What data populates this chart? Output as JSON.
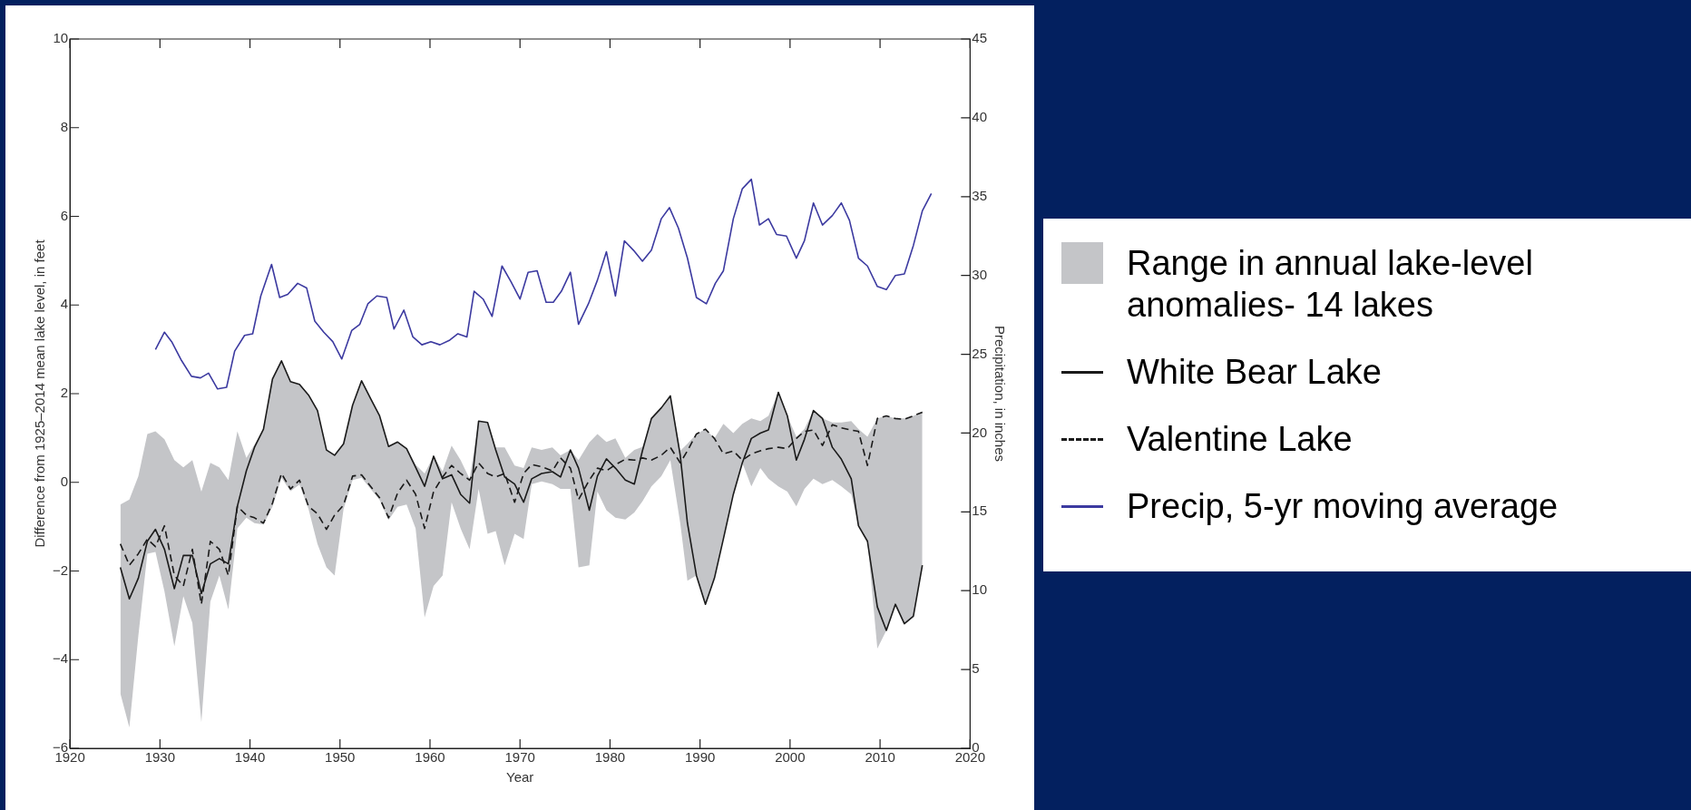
{
  "chart_data": {
    "type": "line",
    "xlabel": "Year",
    "ylabel": "Difference from 1925–2014 mean lake level, in feet",
    "y2label": "Precipitation, in inches",
    "x": [
      1925.6,
      1926.6,
      1927.6,
      1928.6,
      1929.5,
      1930.5,
      1931.6,
      1932.6,
      1933.6,
      1934.6,
      1935.6,
      1936.6,
      1937.6,
      1938.6,
      1939.6,
      1940.5,
      1941.5,
      1942.5,
      1943.5,
      1944.5,
      1945.5,
      1946.5,
      1947.5,
      1948.5,
      1949.4,
      1950.4,
      1951.4,
      1952.4,
      1953.4,
      1954.4,
      1955.4,
      1956.4,
      1957.4,
      1958.4,
      1959.4,
      1960.4,
      1961.4,
      1962.4,
      1963.4,
      1964.4,
      1965.4,
      1966.4,
      1967.3,
      1968.3,
      1969.4,
      1970.4,
      1971.3,
      1972.4,
      1973.6,
      1974.5,
      1975.6,
      1976.5,
      1977.7,
      1978.6,
      1979.6,
      1980.6,
      1981.7,
      1982.7,
      1983.6,
      1984.6,
      1985.7,
      1986.7,
      1987.8,
      1988.6,
      1989.6,
      1990.6,
      1991.6,
      1992.6,
      1993.7,
      1994.7,
      1995.7,
      1996.7,
      1997.6,
      1998.7,
      1999.7,
      2000.7,
      2001.6,
      2002.6,
      2003.6,
      2004.7,
      2005.7,
      2006.8,
      2007.6,
      2008.6,
      2009.7,
      2010.7,
      2011.7,
      2012.7,
      2013.7,
      2014.7
    ],
    "series": [
      {
        "name": "Range in annual lake-level anomalies- 14 lakes",
        "color": "#c4c5c8",
        "values": [
          null,
          null,
          null,
          null,
          null,
          null,
          null,
          null,
          null,
          null,
          null,
          null,
          null,
          null,
          null,
          null,
          null,
          null,
          null,
          null,
          null,
          null,
          null,
          null,
          null,
          null,
          null,
          null,
          null,
          null,
          null,
          null,
          null,
          null,
          null,
          null,
          null,
          null,
          null,
          null,
          null,
          null,
          null,
          null,
          null,
          null,
          null,
          null,
          null,
          null,
          null,
          null,
          null,
          null,
          null,
          null,
          null,
          null,
          null,
          null,
          null,
          null,
          null,
          null,
          null,
          null,
          null,
          null,
          null,
          null,
          null,
          null,
          null,
          null,
          null,
          null,
          null,
          null,
          null,
          null,
          null,
          null,
          null,
          null,
          null,
          null,
          null,
          null,
          null,
          null
        ],
        "lower": [
          -4.76,
          -5.53,
          -3.46,
          -1.61,
          -1.57,
          -2.46,
          -3.7,
          -2.57,
          -3.17,
          -5.41,
          -2.69,
          -2.1,
          -2.87,
          -1.04,
          -0.8,
          -0.92,
          -0.95,
          -0.55,
          0.1,
          -0.2,
          -0.05,
          -0.6,
          -1.39,
          -1.92,
          -2.1,
          -0.6,
          0.05,
          0.1,
          -0.15,
          -0.4,
          -0.85,
          -0.55,
          -0.5,
          -1.04,
          -3.05,
          -2.34,
          -2.1,
          -0.45,
          -1.04,
          -1.51,
          -0.15,
          -1.16,
          -1.1,
          -1.87,
          -1.16,
          -1.28,
          -0.04,
          0.02,
          -0.04,
          -0.15,
          -0.15,
          -1.92,
          -1.87,
          -0.21,
          -0.63,
          -0.8,
          -0.84,
          -0.68,
          -0.43,
          -0.09,
          0.14,
          0.5,
          -0.92,
          -2.22,
          -2.1,
          -2.75,
          -2.16,
          -1.27,
          -0.27,
          0.44,
          -0.09,
          0.32,
          0.08,
          -0.09,
          -0.21,
          -0.54,
          -0.15,
          0.08,
          -0.04,
          0.05,
          -0.09,
          -0.27,
          -0.98,
          -1.33,
          -3.75,
          -3.34,
          -2.75,
          -3.19,
          -3.02,
          -1.87
        ],
        "upper": [
          -0.5,
          -0.39,
          0.14,
          1.09,
          1.15,
          0.97,
          0.5,
          0.34,
          0.5,
          -0.21,
          0.44,
          0.34,
          0.05,
          1.15,
          0.55,
          0.85,
          1.2,
          2.33,
          2.74,
          2.27,
          2.21,
          1.97,
          1.62,
          0.73,
          0.61,
          0.87,
          1.74,
          2.29,
          1.89,
          1.5,
          0.81,
          0.91,
          0.76,
          0.4,
          0.2,
          0.59,
          0.25,
          0.83,
          0.5,
          0.08,
          1.38,
          1.35,
          0.79,
          0.79,
          0.38,
          0.32,
          0.79,
          0.73,
          0.79,
          0.61,
          0.73,
          0.5,
          0.9,
          1.09,
          0.91,
          0.99,
          0.55,
          0.73,
          0.8,
          1.44,
          1.68,
          1.95,
          0.71,
          0.87,
          1.09,
          1.2,
          0.99,
          1.32,
          1.11,
          1.32,
          1.44,
          1.38,
          1.5,
          2.03,
          1.5,
          1.03,
          1.2,
          1.62,
          1.44,
          1.35,
          1.35,
          1.38,
          1.2,
          1.03,
          1.44,
          1.5,
          1.44,
          1.44,
          1.5,
          1.6
        ]
      },
      {
        "name": "White Bear Lake",
        "color": "#1a1a1a",
        "line_style": "solid",
        "values": [
          -1.92,
          -2.63,
          -2.16,
          -1.33,
          -1.06,
          -1.51,
          -2.4,
          -1.65,
          -1.65,
          -2.51,
          -1.84,
          -1.72,
          -1.84,
          -0.54,
          0.26,
          0.79,
          1.2,
          2.33,
          2.74,
          2.27,
          2.21,
          1.97,
          1.62,
          0.73,
          0.61,
          0.87,
          1.74,
          2.29,
          1.89,
          1.5,
          0.81,
          0.91,
          0.76,
          0.34,
          -0.09,
          0.59,
          0.08,
          0.17,
          -0.27,
          -0.47,
          1.38,
          1.35,
          0.73,
          0.12,
          -0.04,
          -0.45,
          0.08,
          0.2,
          0.24,
          0.12,
          0.73,
          0.32,
          -0.63,
          0.14,
          0.53,
          0.32,
          0.05,
          -0.04,
          0.71,
          1.44,
          1.68,
          1.95,
          0.61,
          -0.92,
          -2.1,
          -2.75,
          -2.16,
          -1.27,
          -0.27,
          0.44,
          0.99,
          1.11,
          1.18,
          2.03,
          1.5,
          0.5,
          0.97,
          1.62,
          1.44,
          0.79,
          0.52,
          0.08,
          -0.98,
          -1.33,
          -2.81,
          -3.34,
          -2.75,
          -3.19,
          -3.02,
          -1.87
        ]
      },
      {
        "name": "Valentine Lake",
        "color": "#1a1a1a",
        "line_style": "dashed",
        "values": [
          -1.39,
          -1.87,
          -1.61,
          -1.28,
          -1.45,
          -0.98,
          -2.1,
          -2.34,
          -1.51,
          -2.75,
          -1.33,
          -1.51,
          -2.1,
          -0.54,
          -0.74,
          -0.8,
          -0.92,
          -0.47,
          0.2,
          -0.15,
          0.05,
          -0.54,
          -0.71,
          -1.06,
          -0.74,
          -0.51,
          0.14,
          0.17,
          -0.09,
          -0.35,
          -0.8,
          -0.24,
          0.05,
          -0.27,
          -1.04,
          -0.21,
          0.12,
          0.38,
          0.2,
          0.05,
          0.44,
          0.2,
          0.12,
          0.2,
          -0.45,
          0.2,
          0.4,
          0.35,
          0.26,
          0.55,
          0.32,
          -0.39,
          0.05,
          0.32,
          0.26,
          0.4,
          0.52,
          0.5,
          0.55,
          0.5,
          0.61,
          0.79,
          0.44,
          0.71,
          1.09,
          1.2,
          0.99,
          0.64,
          0.71,
          0.5,
          0.64,
          0.71,
          0.76,
          0.79,
          0.76,
          0.99,
          1.15,
          1.18,
          0.83,
          1.3,
          1.23,
          1.18,
          1.15,
          0.38,
          1.44,
          1.5,
          1.44,
          1.42,
          1.5,
          1.58
        ]
      },
      {
        "name": "Precip, 5-yr moving average",
        "color": "#3c3aa0",
        "line_style": "solid",
        "axis": "y2",
        "x": [
          1929.5,
          1930.5,
          1931.3,
          1932.4,
          1933.5,
          1934.5,
          1935.4,
          1936.4,
          1937.4,
          1938.3,
          1939.4,
          1940.3,
          1941.2,
          1942.4,
          1943.3,
          1944.2,
          1945.3,
          1946.3,
          1947.2,
          1948.2,
          1949.2,
          1950.2,
          1951.3,
          1952.2,
          1953.1,
          1954.1,
          1955.2,
          1956.0,
          1957.1,
          1958.1,
          1959.1,
          1960.1,
          1961.1,
          1962.2,
          1963.1,
          1964.1,
          1964.9,
          1965.9,
          1966.9,
          1968.0,
          1969.0,
          1970.0,
          1970.9,
          1971.9,
          1972.9,
          1973.7,
          1974.6,
          1975.6,
          1976.5,
          1977.6,
          1978.6,
          1979.6,
          1980.6,
          1981.6,
          1982.6,
          1983.6,
          1984.6,
          1985.7,
          1986.6,
          1987.6,
          1988.6,
          1989.6,
          1990.7,
          1991.7,
          1992.6,
          1993.7,
          1994.7,
          1995.7,
          1996.6,
          1997.6,
          1998.5,
          1999.6,
          2000.7,
          2001.6,
          2002.6,
          2003.6,
          2004.7,
          2005.7,
          2006.6,
          2007.6,
          2008.6,
          2009.7,
          2010.7,
          2011.7,
          2012.7,
          2013.7,
          2014.7,
          2015.7
        ],
        "values": [
          25.3,
          26.4,
          25.8,
          24.6,
          23.6,
          23.5,
          23.8,
          22.8,
          22.9,
          25.2,
          26.2,
          26.3,
          28.7,
          30.7,
          28.6,
          28.8,
          29.5,
          29.2,
          27.1,
          26.4,
          25.8,
          24.7,
          26.5,
          26.9,
          28.2,
          28.7,
          28.6,
          26.6,
          27.8,
          26.1,
          25.6,
          25.8,
          25.6,
          25.9,
          26.3,
          26.1,
          29.0,
          28.5,
          27.4,
          30.6,
          29.6,
          28.5,
          30.2,
          30.3,
          28.3,
          28.3,
          29.0,
          30.2,
          26.9,
          28.2,
          29.7,
          31.5,
          28.7,
          32.2,
          31.6,
          30.9,
          31.6,
          33.6,
          34.3,
          33.0,
          31.1,
          28.6,
          28.2,
          29.5,
          30.3,
          33.6,
          35.5,
          36.1,
          33.2,
          33.6,
          32.6,
          32.5,
          31.1,
          32.2,
          34.6,
          33.2,
          33.8,
          34.6,
          33.5,
          31.1,
          30.6,
          29.3,
          29.1,
          30.0,
          30.1,
          31.9,
          34.1,
          35.2
        ]
      }
    ],
    "xlim": [
      1920,
      2020
    ],
    "xticks": [
      1920,
      1930,
      1940,
      1950,
      1960,
      1970,
      1980,
      1990,
      2000,
      2010,
      2020
    ],
    "ylim": [
      -6,
      10
    ],
    "yticks": [
      {
        "value": -6,
        "label": "−6"
      },
      {
        "value": -4,
        "label": "−4"
      },
      {
        "value": -2,
        "label": "−2"
      },
      0,
      2,
      4,
      6,
      8,
      10
    ],
    "y2lim": [
      0,
      45
    ],
    "y2ticks": [
      0,
      5,
      10,
      15,
      20,
      25,
      30,
      35,
      40,
      45
    ],
    "legend": "right",
    "marker": "none"
  }
}
